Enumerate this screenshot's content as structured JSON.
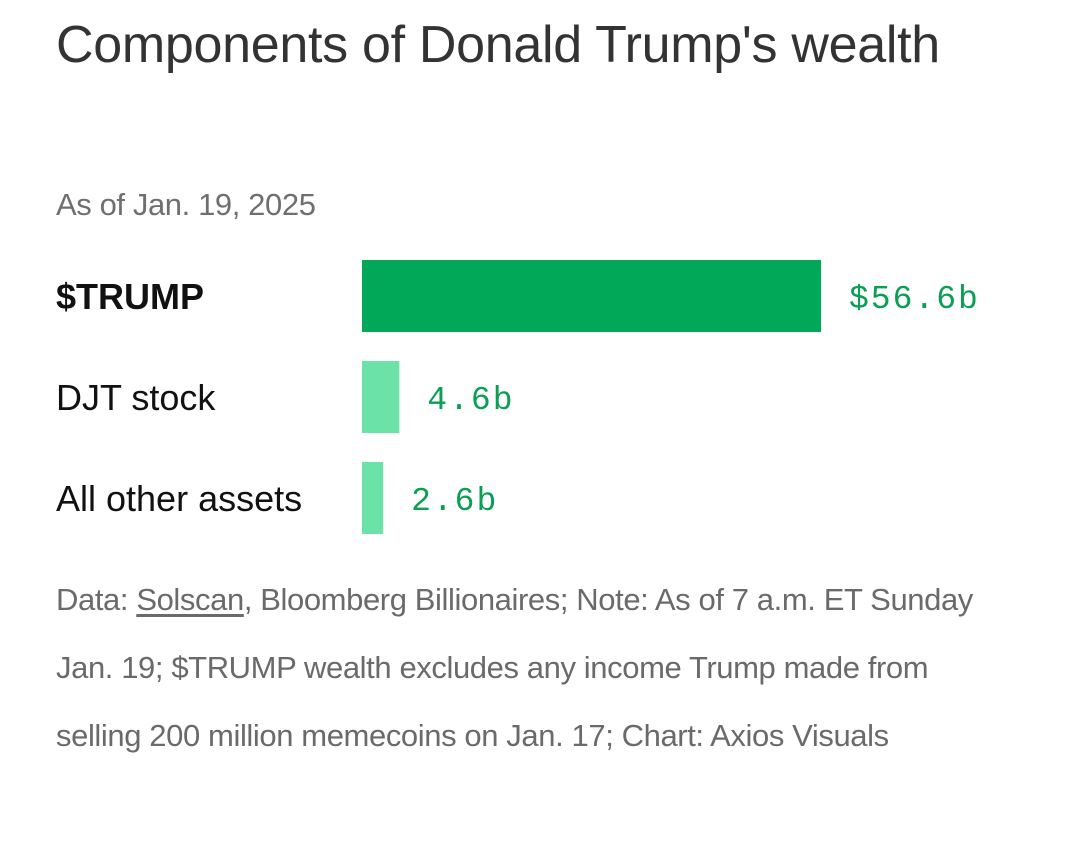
{
  "header": {
    "title": "Components of Donald Trump's wealth",
    "subtitle": "As of Jan. 19, 2025"
  },
  "chart_data": {
    "type": "bar",
    "orientation": "horizontal",
    "title": "Components of Donald Trump's wealth",
    "subtitle": "As of Jan. 19, 2025",
    "categories": [
      "$TRUMP",
      "DJT stock",
      "All other assets"
    ],
    "values": [
      56.6,
      4.6,
      2.6
    ],
    "value_labels": [
      "$56.6b",
      "4.6b",
      "2.6b"
    ],
    "unit": "billions USD",
    "highlight_index": 0,
    "colors": {
      "highlight": "#00a857",
      "default": "#6be3a8",
      "value_text": "#0a9f52"
    },
    "grid": false,
    "legend": "none"
  },
  "footer": {
    "prefix": "Data: ",
    "source_link": "Solscan",
    "rest": ", Bloomberg Billionaires; Note: As of 7 a.m. ET Sunday Jan. 19; $TRUMP wealth excludes any income Trump made from selling 200 million memecoins on Jan. 17; Chart: Axios Visuals"
  }
}
